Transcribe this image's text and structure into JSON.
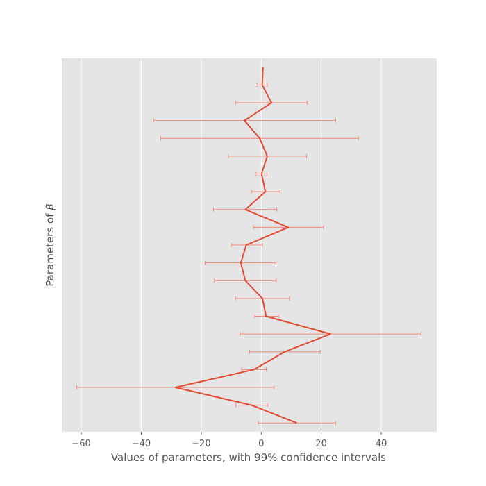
{
  "chart_data": {
    "type": "line",
    "title": "",
    "xlabel": "Values of parameters, with 99% confidence intervals",
    "ylabel_prefix": "Parameters of ",
    "ylabel_symbol": "β",
    "xlim": [
      -66.5,
      58.5
    ],
    "ylim": [
      -0.5,
      20.5
    ],
    "xticks": [
      -60,
      -40,
      -20,
      0,
      20,
      40
    ],
    "xtick_labels": [
      "−60",
      "−40",
      "−20",
      "0",
      "20",
      "40"
    ],
    "yticks": [],
    "grid": true,
    "legend": "none",
    "colors": {
      "background": "#E5E5E5",
      "grid": "#FFFFFF",
      "line": "#E24A33",
      "errorbar": "#EE8A78"
    },
    "series": [
      {
        "values": [
          {
            "y": 0,
            "x": 11.8,
            "ci": [
              -1.0,
              24.8
            ]
          },
          {
            "y": 1,
            "x": -3.2,
            "ci": [
              -8.5,
              2.1
            ]
          },
          {
            "y": 2,
            "x": -28.6,
            "ci": [
              -61.5,
              4.3
            ]
          },
          {
            "y": 3,
            "x": -2.4,
            "ci": [
              -6.5,
              1.7
            ]
          },
          {
            "y": 4,
            "x": 7.8,
            "ci": [
              -3.9,
              19.6
            ]
          },
          {
            "y": 5,
            "x": 23.1,
            "ci": [
              -7.1,
              53.3
            ]
          },
          {
            "y": 6,
            "x": 1.6,
            "ci": [
              -2.2,
              5.8
            ]
          },
          {
            "y": 7,
            "x": 0.4,
            "ci": [
              -8.6,
              9.4
            ]
          },
          {
            "y": 8,
            "x": -5.3,
            "ci": [
              -15.6,
              5.0
            ]
          },
          {
            "y": 9,
            "x": -6.8,
            "ci": [
              -18.7,
              4.9
            ]
          },
          {
            "y": 10,
            "x": -5.0,
            "ci": [
              -10.0,
              0.4
            ]
          },
          {
            "y": 11,
            "x": 9.0,
            "ci": [
              -2.6,
              20.8
            ]
          },
          {
            "y": 12,
            "x": -5.3,
            "ci": [
              -15.9,
              5.2
            ]
          },
          {
            "y": 13,
            "x": 1.4,
            "ci": [
              -3.3,
              6.3
            ]
          },
          {
            "y": 14,
            "x": 0.1,
            "ci": [
              -1.7,
              1.9
            ]
          },
          {
            "y": 15,
            "x": 2.0,
            "ci": [
              -11.0,
              15.1
            ]
          },
          {
            "y": 16,
            "x": -0.5,
            "ci": [
              -33.5,
              32.4
            ]
          },
          {
            "y": 17,
            "x": -5.6,
            "ci": [
              -35.8,
              24.8
            ]
          },
          {
            "y": 18,
            "x": 3.4,
            "ci": [
              -8.6,
              15.4
            ]
          },
          {
            "y": 19,
            "x": 0.3,
            "ci": [
              -1.4,
              2.0
            ]
          },
          {
            "y": 20,
            "x": 0.6,
            "ci": null
          }
        ]
      }
    ]
  }
}
